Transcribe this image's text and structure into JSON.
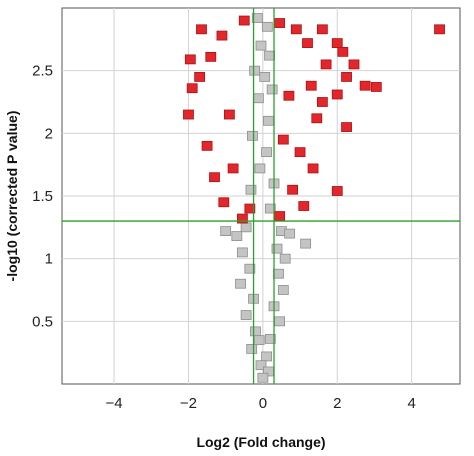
{
  "chart_data": {
    "type": "scatter",
    "title": "",
    "xlabel": "Log2 (Fold change)",
    "ylabel": "-log10 (corrected P value)",
    "xlim": [
      -5.4,
      5.3
    ],
    "ylim": [
      0,
      3.0
    ],
    "x_ticks": [
      -4,
      -2,
      0,
      2,
      4
    ],
    "x_tick_labels": [
      "−4",
      "−2",
      "0",
      "2",
      "4"
    ],
    "y_ticks": [
      0.5,
      1,
      1.5,
      2,
      2.5
    ],
    "y_tick_labels": [
      "0.5",
      "1",
      "1.5",
      "2",
      "2.5"
    ],
    "grid": true,
    "thresholds": {
      "fold_change_x": [
        -0.25,
        0.3
      ],
      "significance_y": 1.3
    },
    "colors": {
      "significant": "#e3262b",
      "not_significant": "#c4c4c4",
      "threshold_line": "#2aa12a"
    },
    "series": [
      {
        "color": "significant",
        "points": [
          [
            4.75,
            2.83
          ],
          [
            -1.65,
            2.83
          ],
          [
            -1.95,
            2.59
          ],
          [
            2.0,
            2.72
          ],
          [
            2.15,
            2.65
          ],
          [
            2.45,
            2.55
          ],
          [
            2.25,
            2.45
          ],
          [
            2.75,
            2.38
          ],
          [
            3.05,
            2.37
          ],
          [
            2.0,
            2.31
          ],
          [
            1.45,
            2.12
          ],
          [
            2.25,
            2.05
          ],
          [
            2.0,
            1.54
          ],
          [
            -1.9,
            2.36
          ],
          [
            -2.0,
            2.15
          ],
          [
            -1.7,
            2.45
          ],
          [
            -1.4,
            2.61
          ],
          [
            1.7,
            2.55
          ],
          [
            1.3,
            2.38
          ],
          [
            1.6,
            2.25
          ],
          [
            -1.5,
            1.9
          ],
          [
            -1.3,
            1.65
          ],
          [
            -0.55,
            1.32
          ],
          [
            0.45,
            1.34
          ],
          [
            1.1,
            1.42
          ],
          [
            0.9,
            2.83
          ],
          [
            1.2,
            2.72
          ],
          [
            1.6,
            2.83
          ],
          [
            -0.5,
            2.9
          ],
          [
            0.45,
            2.88
          ],
          [
            -1.1,
            2.78
          ],
          [
            1.0,
            1.85
          ],
          [
            1.35,
            1.72
          ],
          [
            -1.05,
            1.45
          ],
          [
            0.8,
            1.55
          ],
          [
            -0.8,
            1.72
          ],
          [
            -0.35,
            1.4
          ],
          [
            0.55,
            1.95
          ],
          [
            -0.9,
            2.15
          ],
          [
            0.7,
            2.3
          ]
        ]
      },
      {
        "color": "not_significant",
        "points": [
          [
            -0.15,
            2.92
          ],
          [
            0.12,
            2.85
          ],
          [
            -0.05,
            2.7
          ],
          [
            0.18,
            2.62
          ],
          [
            -0.22,
            2.5
          ],
          [
            0.05,
            2.45
          ],
          [
            0.25,
            2.35
          ],
          [
            -0.12,
            2.28
          ],
          [
            0.15,
            2.1
          ],
          [
            -0.28,
            1.98
          ],
          [
            0.1,
            1.85
          ],
          [
            -0.08,
            1.72
          ],
          [
            0.3,
            1.6
          ],
          [
            -0.32,
            1.55
          ],
          [
            0.2,
            1.4
          ],
          [
            -0.45,
            1.25
          ],
          [
            0.5,
            1.22
          ],
          [
            -0.7,
            1.18
          ],
          [
            0.72,
            1.2
          ],
          [
            -1.0,
            1.22
          ],
          [
            1.15,
            1.12
          ],
          [
            -0.55,
            1.05
          ],
          [
            0.6,
            1.0
          ],
          [
            -0.35,
            0.92
          ],
          [
            0.42,
            0.88
          ],
          [
            -0.6,
            0.8
          ],
          [
            0.55,
            0.75
          ],
          [
            -0.25,
            0.68
          ],
          [
            0.3,
            0.62
          ],
          [
            -0.45,
            0.55
          ],
          [
            0.45,
            0.5
          ],
          [
            -0.2,
            0.42
          ],
          [
            0.2,
            0.36
          ],
          [
            -0.3,
            0.28
          ],
          [
            0.1,
            0.22
          ],
          [
            -0.05,
            0.15
          ],
          [
            0.15,
            0.1
          ],
          [
            0.0,
            0.05
          ],
          [
            -0.1,
            0.35
          ],
          [
            0.38,
            1.08
          ]
        ]
      }
    ]
  }
}
